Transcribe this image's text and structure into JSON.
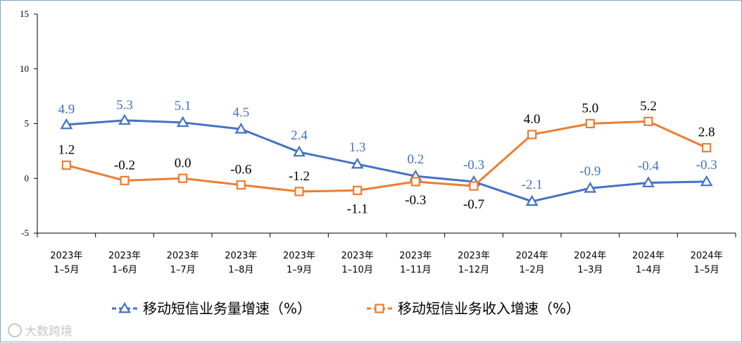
{
  "chart_data": {
    "type": "line",
    "categories": [
      [
        "2023年",
        "1–5月"
      ],
      [
        "2023年",
        "1–6月"
      ],
      [
        "2023年",
        "1–7月"
      ],
      [
        "2023年",
        "1–8月"
      ],
      [
        "2023年",
        "1–9月"
      ],
      [
        "2023年",
        "1–10月"
      ],
      [
        "2023年",
        "1–11月"
      ],
      [
        "2023年",
        "1–12月"
      ],
      [
        "2024年",
        "1–2月"
      ],
      [
        "2024年",
        "1–3月"
      ],
      [
        "2024年",
        "1–4月"
      ],
      [
        "2024年",
        "1–5月"
      ]
    ],
    "series": [
      {
        "name": "移动短信业务量增速（%）",
        "values": [
          4.9,
          5.3,
          5.1,
          4.5,
          2.4,
          1.3,
          0.2,
          -0.3,
          -2.1,
          -0.9,
          -0.4,
          -0.3
        ],
        "labels": [
          "4.9",
          "5.3",
          "5.1",
          "4.5",
          "2.4",
          "1.3",
          "0.2",
          "-0.3",
          "-2.1",
          "-0.9",
          "-0.4",
          "-0.3"
        ],
        "color": "#4472c4",
        "marker": "triangle"
      },
      {
        "name": "移动短信业务收入增速（%）",
        "values": [
          1.2,
          -0.2,
          0.0,
          -0.6,
          -1.2,
          -1.1,
          -0.3,
          -0.7,
          4.0,
          5.0,
          5.2,
          2.8
        ],
        "labels": [
          "1.2",
          "-0.2",
          "0.0",
          "-0.6",
          "-1.2",
          "-1.1",
          "-0.3",
          "-0.7",
          "4.0",
          "5.0",
          "5.2",
          "2.8"
        ],
        "color": "#ed7d31",
        "marker": "square"
      }
    ],
    "yticks": [
      "15",
      "10",
      "5",
      "0",
      "-5"
    ],
    "ylim": [
      -5,
      15
    ],
    "legend_position": "bottom",
    "grid": false
  },
  "watermark": {
    "text": "大数跨境"
  }
}
